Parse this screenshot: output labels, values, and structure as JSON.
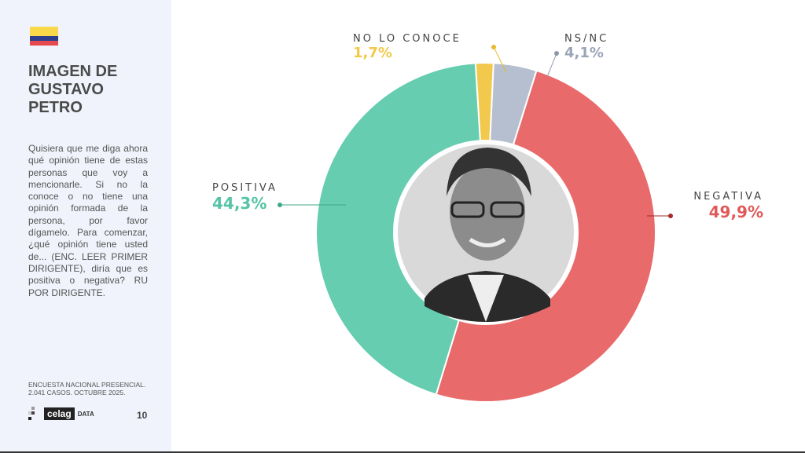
{
  "sidebar": {
    "flag_colors": [
      "#f9d949",
      "#2d3e8c",
      "#e5484d"
    ],
    "title": "IMAGEN DE GUSTAVO PETRO",
    "question": "Quisiera que me diga ahora qué opinión tiene de estas personas que voy a mencionarle. Si no la conoce o no tiene una opinión formada de la persona, por favor dígamelo. Para comenzar, ¿qué opinión tiene usted de... (ENC. LEER PRIMER DIRIGENTE), diría que es positiva o negativa? RU POR DIRIGENTE.",
    "source": "ENCUESTA NACIONAL PRESENCIAL. 2.041 CASOS. OCTUBRE 2025.",
    "logo": "celag DATA",
    "logo_text": "celag",
    "logo_sub": "DATA",
    "page_number": "10"
  },
  "chart_data": {
    "type": "pie",
    "donut": true,
    "center_image": "portrait-photo (grayscale)",
    "slices": [
      {
        "label": "NO LO CONOCE",
        "value": 1.7,
        "display": "1,7%",
        "color": "#f2c94c"
      },
      {
        "label": "NS/NC",
        "value": 4.1,
        "display": "4,1%",
        "color": "#b5bfcf"
      },
      {
        "label": "NEGATIVA",
        "value": 49.9,
        "display": "49,9%",
        "color": "#e96a6a"
      },
      {
        "label": "POSITIVA",
        "value": 44.3,
        "display": "44,3%",
        "color": "#66cdb0"
      }
    ]
  }
}
